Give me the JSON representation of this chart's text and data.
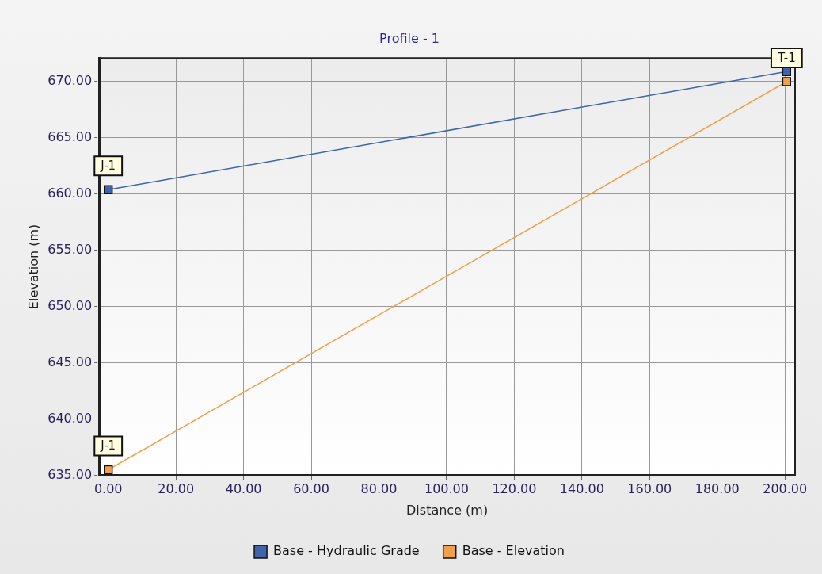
{
  "chart_data": {
    "type": "line",
    "title": "Profile - 1",
    "xlabel": "Distance (m)",
    "ylabel": "Elevation (m)",
    "x": [
      0,
      200.5
    ],
    "series": [
      {
        "name": "Base - Hydraulic Grade",
        "color": "#3f65a8",
        "values": [
          660.4,
          670.9
        ],
        "value_labels": [
          "J-1",
          null
        ]
      },
      {
        "name": "Base - Elevation",
        "color": "#f0a04a",
        "values": [
          635.5,
          670.0
        ],
        "value_labels": [
          "J-1",
          "T-1"
        ]
      }
    ],
    "xlim": [
      -2.7,
      203
    ],
    "xticks": [
      {
        "value": 0,
        "label": "0.00"
      },
      {
        "value": 20,
        "label": "20.00"
      },
      {
        "value": 40,
        "label": "40.00"
      },
      {
        "value": 60,
        "label": "60.00"
      },
      {
        "value": 80,
        "label": "80.00"
      },
      {
        "value": 100,
        "label": "100.00"
      },
      {
        "value": 120,
        "label": "120.00"
      },
      {
        "value": 140,
        "label": "140.00"
      },
      {
        "value": 160,
        "label": "160.00"
      },
      {
        "value": 180,
        "label": "180.00"
      },
      {
        "value": 200,
        "label": "200.00"
      }
    ],
    "ylim": [
      635,
      672.1
    ],
    "yticks": [
      {
        "value": 635,
        "label": "635.00"
      },
      {
        "value": 640,
        "label": "640.00"
      },
      {
        "value": 645,
        "label": "645.00"
      },
      {
        "value": 650,
        "label": "650.00"
      },
      {
        "value": 655,
        "label": "655.00"
      },
      {
        "value": 660,
        "label": "660.00"
      },
      {
        "value": 665,
        "label": "665.00"
      },
      {
        "value": 670,
        "label": "670.00"
      }
    ],
    "grid": true,
    "legend": "bottom",
    "marker": "square",
    "line_style": "solid"
  }
}
